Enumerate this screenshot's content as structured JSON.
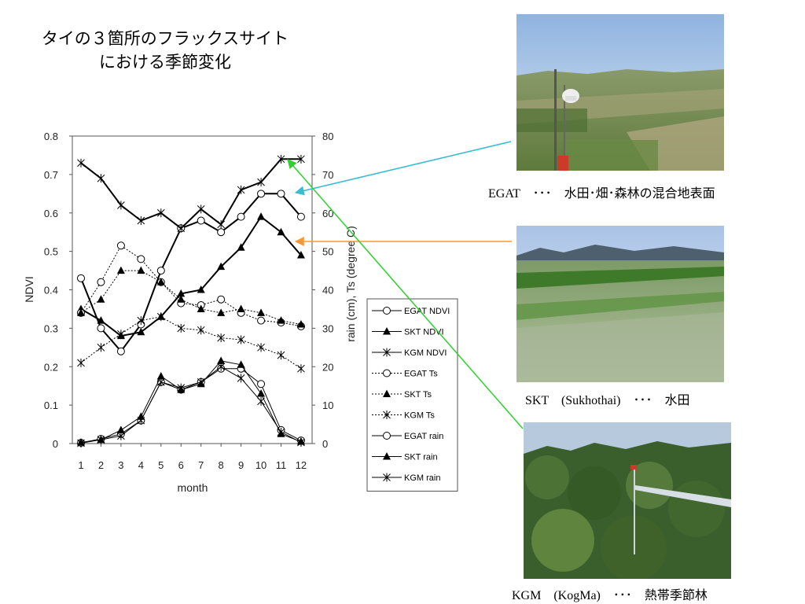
{
  "title": {
    "line1": "タイの３箇所のフラックスサイト",
    "line2": "における季節変化"
  },
  "chart_data": {
    "type": "line",
    "x": [
      1,
      2,
      3,
      4,
      5,
      6,
      7,
      8,
      9,
      10,
      11,
      12
    ],
    "xlabel": "month",
    "ylabel_left": "NDVI",
    "ylabel_right": "rain (cm),  Ts (degree C)",
    "ylim_left": [
      0,
      0.8
    ],
    "ylim_right": [
      0,
      80
    ],
    "yticks_left": [
      "0",
      "0.1",
      "0.2",
      "0.3",
      "0.4",
      "0.5",
      "0.6",
      "0.7",
      "0.8"
    ],
    "yticks_right": [
      "0",
      "10",
      "20",
      "30",
      "40",
      "50",
      "60",
      "70",
      "80"
    ],
    "legend_position": "right",
    "series": [
      {
        "name": "EGAT NDVI",
        "axis": "left",
        "style": "solid",
        "width": 2,
        "marker": "circle",
        "values": [
          0.43,
          0.3,
          0.24,
          0.31,
          0.45,
          0.56,
          0.58,
          0.55,
          0.59,
          0.65,
          0.65,
          0.59
        ]
      },
      {
        "name": "SKT NDVI",
        "axis": "left",
        "style": "solid",
        "width": 2,
        "marker": "triangle",
        "values": [
          0.35,
          0.32,
          0.28,
          0.29,
          0.33,
          0.39,
          0.4,
          0.46,
          0.51,
          0.59,
          0.55,
          0.49
        ]
      },
      {
        "name": "KGM NDVI",
        "axis": "left",
        "style": "solid",
        "width": 2,
        "marker": "star",
        "values": [
          0.73,
          0.69,
          0.62,
          0.58,
          0.6,
          0.56,
          0.61,
          0.57,
          0.66,
          0.68,
          0.74,
          0.74
        ]
      },
      {
        "name": "EGAT Ts",
        "axis": "right",
        "style": "dotted",
        "width": 1,
        "marker": "circle",
        "values": [
          34,
          42,
          51.5,
          48,
          42,
          36.5,
          36,
          37.5,
          34,
          32,
          31.5,
          30.5
        ]
      },
      {
        "name": "SKT Ts",
        "axis": "right",
        "style": "dotted",
        "width": 1,
        "marker": "triangle",
        "values": [
          34,
          37.5,
          45,
          45,
          42,
          37.5,
          35,
          34,
          35,
          34,
          32,
          31
        ]
      },
      {
        "name": "KGM Ts",
        "axis": "right",
        "style": "dotted",
        "width": 1,
        "marker": "star",
        "values": [
          21,
          25,
          28.5,
          32,
          33,
          30,
          29.5,
          27.5,
          27,
          25,
          23,
          19.5
        ]
      },
      {
        "name": "EGAT rain",
        "axis": "right",
        "style": "solid",
        "width": 1,
        "marker": "circle",
        "values": [
          0.2,
          1.2,
          2.5,
          6,
          16,
          14,
          16,
          19.5,
          19.5,
          15.5,
          3.5,
          0.8
        ]
      },
      {
        "name": "SKT rain",
        "axis": "right",
        "style": "solid",
        "width": 1,
        "marker": "triangle",
        "values": [
          0.3,
          1,
          3.5,
          7,
          17.5,
          14,
          15.5,
          21.5,
          20.5,
          13,
          2.5,
          0.5
        ]
      },
      {
        "name": "KGM rain",
        "axis": "right",
        "style": "solid",
        "width": 1,
        "marker": "star",
        "values": [
          0.1,
          1,
          2,
          6,
          16,
          14.5,
          16,
          20,
          17,
          11,
          3,
          0.3
        ]
      }
    ]
  },
  "sites": [
    {
      "caption": "EGAT　･･･　水田･畑･森林の混合地表面",
      "arrow_color": "#37bcd0"
    },
    {
      "caption": "SKT　(Sukhothai)　･･･　水田",
      "arrow_color": "#f29a3a"
    },
    {
      "caption": "KGM　(KogMa)　･･･　熱帯季節林",
      "arrow_color": "#2ed12e"
    }
  ]
}
